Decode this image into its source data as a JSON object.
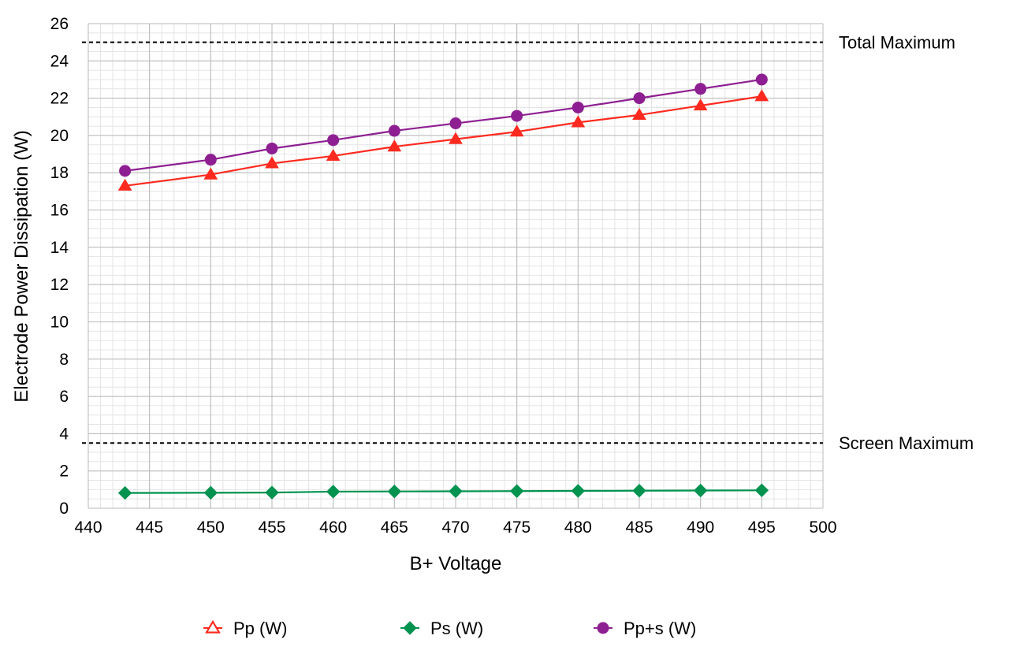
{
  "chart_data": {
    "type": "line",
    "xlabel": "B+ Voltage",
    "ylabel": "Electrode Power Dissipation (W)",
    "xlim": [
      440,
      500
    ],
    "ylim": [
      0,
      26
    ],
    "x_ticks": [
      440,
      445,
      450,
      455,
      460,
      465,
      470,
      475,
      480,
      485,
      490,
      495,
      500
    ],
    "y_ticks": [
      0,
      2,
      4,
      6,
      8,
      10,
      12,
      14,
      16,
      18,
      20,
      22,
      24,
      26
    ],
    "x_minor_step": 1,
    "y_minor_step": 0.5,
    "grid": true,
    "legend_position": "bottom",
    "x": [
      443,
      450,
      455,
      460,
      465,
      470,
      475,
      480,
      485,
      490,
      495
    ],
    "series": [
      {
        "name": "Pp (W)",
        "color": "#ff2a1f",
        "marker": "triangle",
        "values": [
          17.3,
          17.9,
          18.5,
          18.9,
          19.4,
          19.8,
          20.2,
          20.7,
          21.1,
          21.6,
          22.1
        ]
      },
      {
        "name": "Ps (W)",
        "color": "#00924f",
        "marker": "diamond",
        "values": [
          0.82,
          0.83,
          0.84,
          0.89,
          0.9,
          0.91,
          0.92,
          0.93,
          0.94,
          0.95,
          0.96
        ]
      },
      {
        "name": "Pp+s (W)",
        "color": "#8e1f92",
        "marker": "circle",
        "values": [
          18.1,
          18.7,
          19.3,
          19.75,
          20.25,
          20.65,
          21.05,
          21.5,
          22.0,
          22.5,
          23.0
        ]
      }
    ],
    "reference_lines": [
      {
        "label": "Total Maximum",
        "value": 25,
        "style": "dashed",
        "color": "#000000"
      },
      {
        "label": "Screen Maximum",
        "value": 3.5,
        "style": "dashed",
        "color": "#000000"
      }
    ]
  }
}
